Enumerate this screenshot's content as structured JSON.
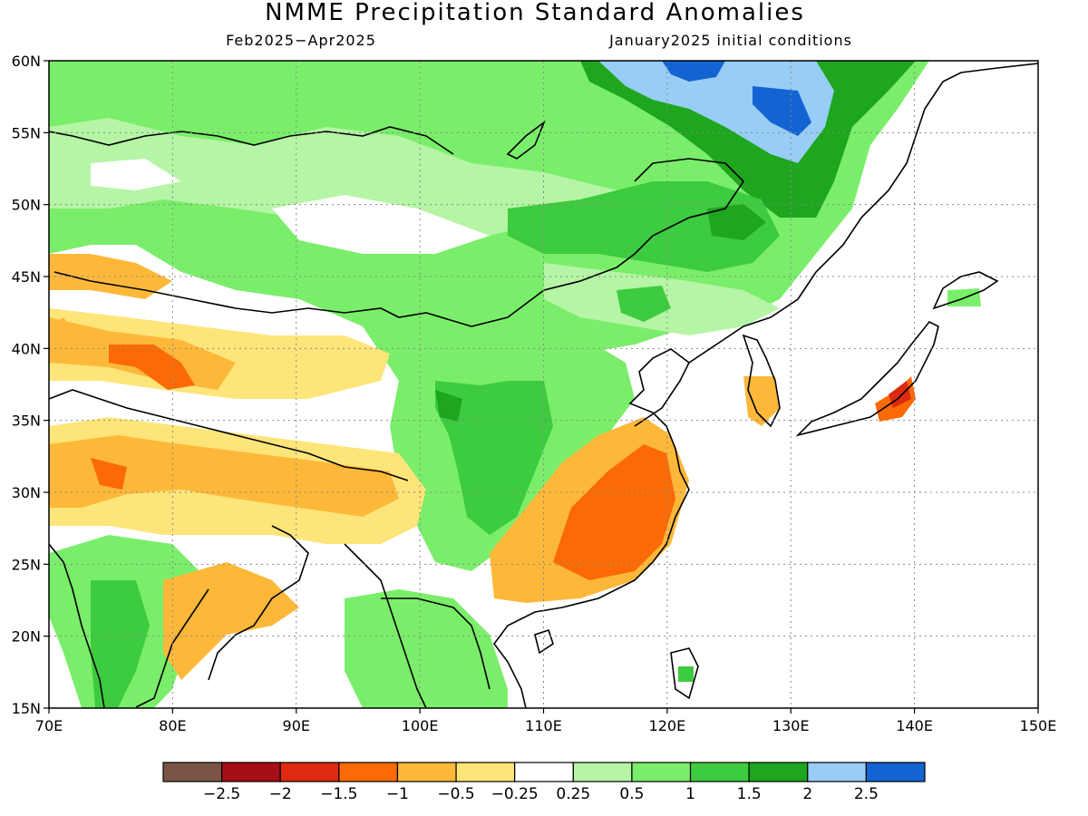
{
  "title": "NMME Precipitation Standard Anomalies",
  "subtitle_left": "Feb2025−Apr2025",
  "subtitle_right": "January2025 initial conditions",
  "map": {
    "lon_range": [
      70,
      150
    ],
    "lat_range": [
      15,
      60
    ],
    "x_ticks": [
      "70E",
      "80E",
      "90E",
      "100E",
      "110E",
      "120E",
      "130E",
      "140E",
      "150E"
    ],
    "y_ticks": [
      "60N",
      "55N",
      "50N",
      "45N",
      "40N",
      "35N",
      "30N",
      "25N",
      "20N",
      "15N"
    ],
    "grid": "dotted",
    "shaded_regions": [
      {
        "name": "northern-band-wet",
        "level": 0.5
      },
      {
        "name": "siberia-very-wet",
        "level": 2.0
      },
      {
        "name": "siberia-core",
        "level": 2.5
      },
      {
        "name": "manchuria-wet",
        "level": 1.5
      },
      {
        "name": "central-china-wet",
        "level": 1.0
      },
      {
        "name": "sichuan-core-wet",
        "level": 1.5
      },
      {
        "name": "india-east-wet",
        "level": 1.0
      },
      {
        "name": "southeast-china-dry",
        "level": -1.0
      },
      {
        "name": "southeast-china-core-dry",
        "level": -1.5
      },
      {
        "name": "tibet-dry",
        "level": -0.5
      },
      {
        "name": "central-asia-dry",
        "level": -1.0
      },
      {
        "name": "japan-dry",
        "level": -1.5
      },
      {
        "name": "korea-dry",
        "level": -0.5
      }
    ]
  },
  "colorbar": {
    "colors": [
      "#7a5546",
      "#a50f15",
      "#dd2a10",
      "#fb6a05",
      "#fdb83a",
      "#fee57a",
      "#ffffff",
      "#b5f5a5",
      "#7aee6a",
      "#3dcb3f",
      "#1ea61e",
      "#98cdf5",
      "#1463d3"
    ],
    "labels": [
      "−2.5",
      "−2",
      "−1.5",
      "−1",
      "−0.5",
      "−0.25",
      "0.25",
      "0.5",
      "1",
      "1.5",
      "2",
      "2.5"
    ]
  },
  "colors": {
    "wet_light": "#b5f5a5",
    "wet": "#7aee6a",
    "wet_mid": "#3dcb3f",
    "wet_dark": "#1ea61e",
    "wet_blue": "#98cdf5",
    "wet_deep": "#1463d3",
    "dry_light": "#fee57a",
    "dry": "#fdb83a",
    "dry_mid": "#fb6a05",
    "dry_dark": "#dd2a10"
  }
}
